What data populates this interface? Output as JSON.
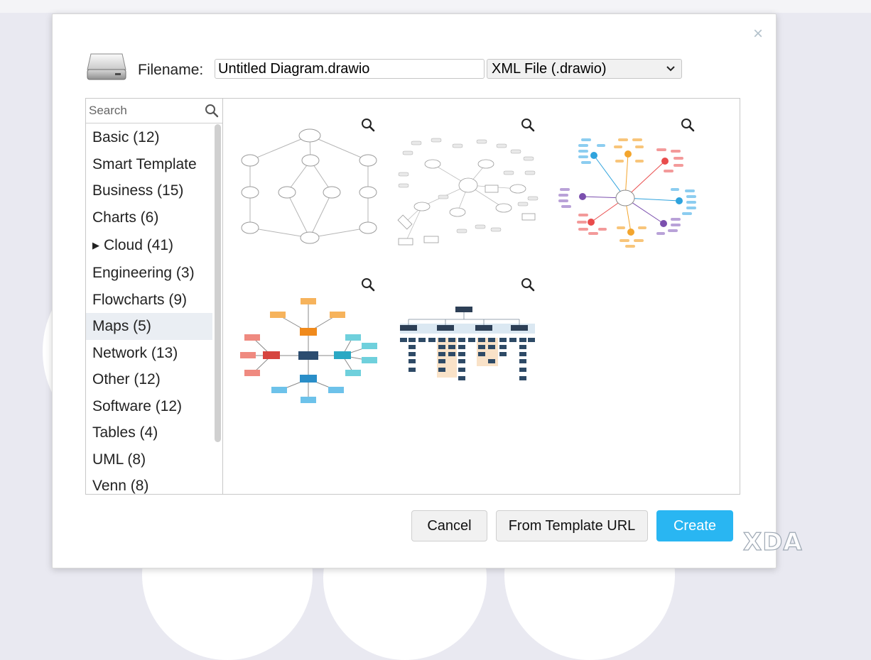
{
  "dialog": {
    "close_label": "×",
    "filename_label": "Filename:",
    "filename_value": "Untitled Diagram.drawio",
    "file_type": {
      "selected": "XML File (.drawio)",
      "chevron": "⌵"
    }
  },
  "sidebar": {
    "search_placeholder": "Search",
    "categories": [
      {
        "label": "Basic (12)"
      },
      {
        "label": "Smart Template"
      },
      {
        "label": "Business (15)"
      },
      {
        "label": "Charts (6)"
      },
      {
        "label": "Cloud (41)",
        "expand": "▶"
      },
      {
        "label": "Engineering (3)"
      },
      {
        "label": "Flowcharts (9)"
      },
      {
        "label": "Maps (5)",
        "selected": true
      },
      {
        "label": "Network (13)"
      },
      {
        "label": "Other (12)"
      },
      {
        "label": "Software (12)"
      },
      {
        "label": "Tables (4)"
      },
      {
        "label": "UML (8)"
      },
      {
        "label": "Venn (8)"
      }
    ]
  },
  "templates": [
    {
      "name": "concept-map-template",
      "icon": "zoom-icon"
    },
    {
      "name": "mind-map-template",
      "icon": "zoom-icon"
    },
    {
      "name": "color-mind-map-template",
      "icon": "zoom-icon"
    },
    {
      "name": "radial-map-template",
      "icon": "zoom-icon"
    },
    {
      "name": "org-map-template",
      "icon": "zoom-icon"
    }
  ],
  "buttons": {
    "cancel": "Cancel",
    "from_template_url": "From Template URL",
    "create": "Create"
  },
  "watermark": "XDA",
  "colors": {
    "accent": "#29b6f2",
    "selected_row": "#eaeef3"
  }
}
